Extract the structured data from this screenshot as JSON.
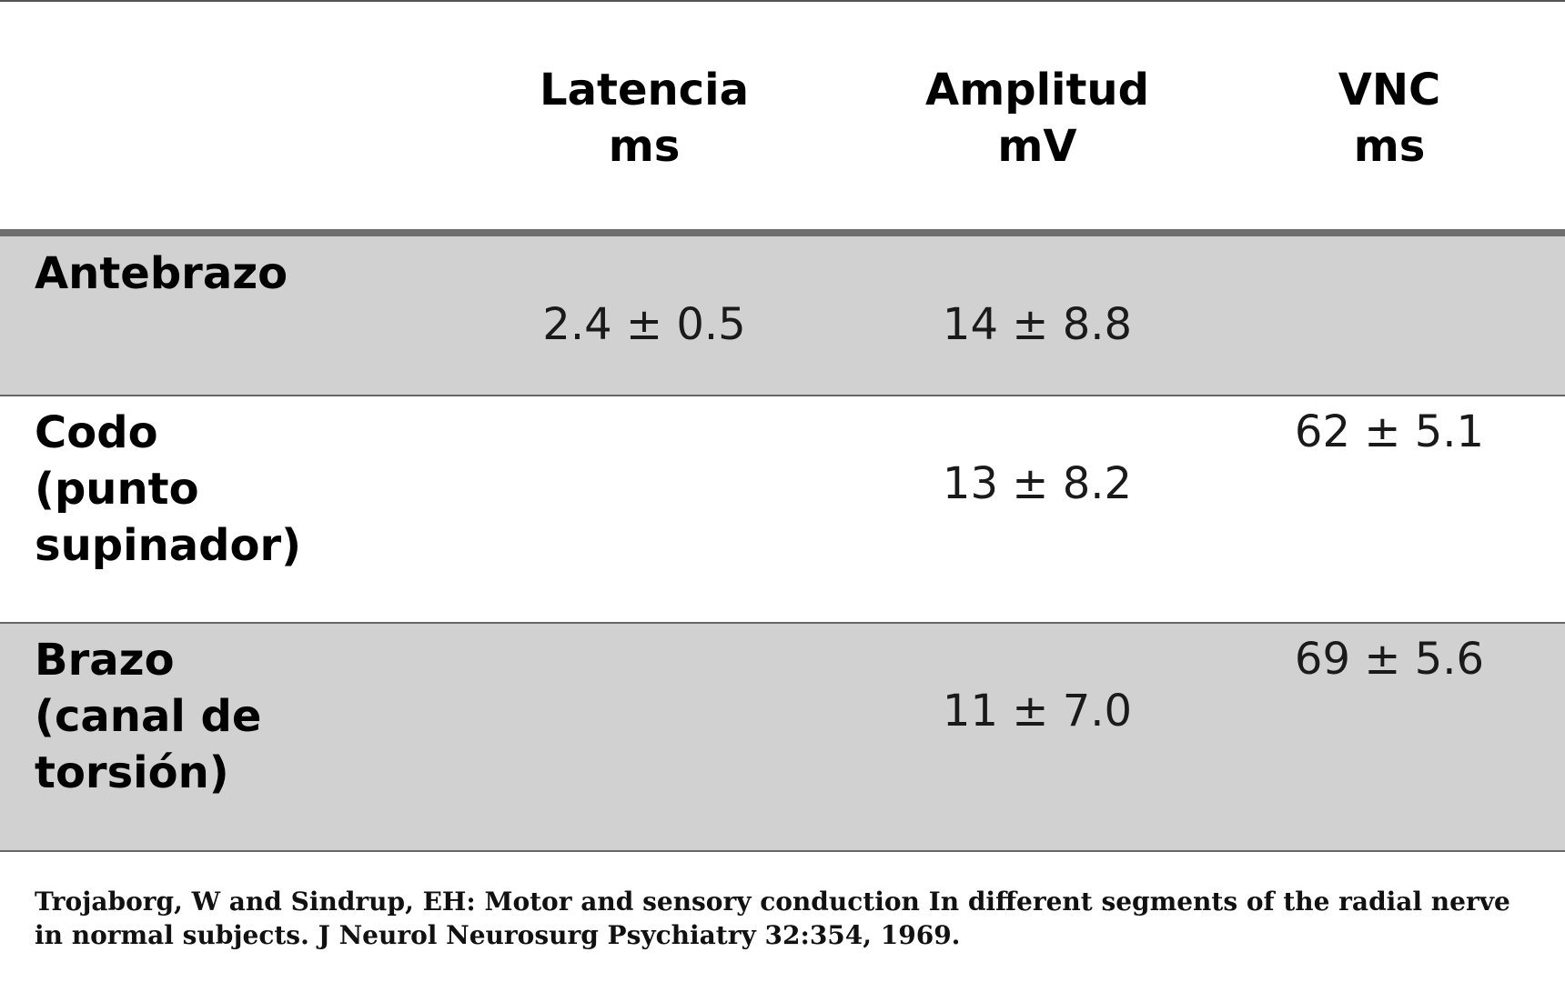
{
  "header": {
    "columns": [
      {
        "title": "Latencia",
        "unit": "ms"
      },
      {
        "title": "Amplitud",
        "unit": "mV"
      },
      {
        "title": "VNC",
        "unit": "ms"
      }
    ]
  },
  "rows": [
    {
      "label": "Antebrazo",
      "latencia": "2.4 ± 0.5",
      "amplitud": "14 ± 8.8",
      "vnc": ""
    },
    {
      "label": "Codo\n(punto\nsupinador)",
      "latencia": "",
      "amplitud": "13 ± 8.2",
      "vnc": "62 ± 5.1"
    },
    {
      "label": "Brazo\n(canal de\ntorsión)",
      "latencia": "",
      "amplitud": "11 ± 7.0",
      "vnc": "69 ± 5.6"
    }
  ],
  "citation": "Trojaborg, W and Sindrup, EH: Motor and sensory conduction In different segments of the radial nerve in normal subjects. J Neurol Neurosurg Psychiatry 32:354, 1969.",
  "colors": {
    "shaded_row": "#d1d1d1",
    "header_rule": "#6e6e6e",
    "divider": "#666666"
  }
}
